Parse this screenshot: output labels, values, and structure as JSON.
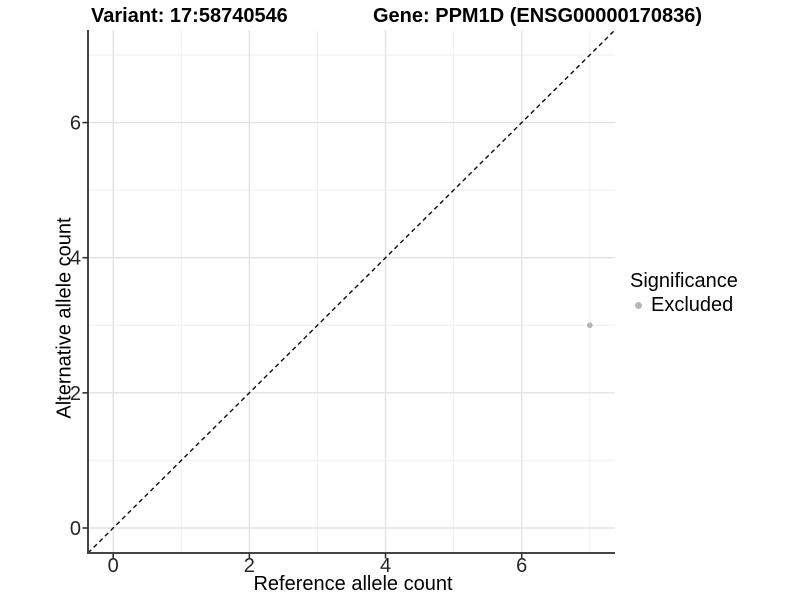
{
  "chart_data": {
    "type": "scatter",
    "titles": {
      "left": "Variant: 17:58740546",
      "right": "Gene: PPM1D (ENSG00000170836)"
    },
    "xlabel": "Reference allele count",
    "ylabel": "Alternative allele count",
    "xlim": [
      -0.37,
      7.37
    ],
    "ylim": [
      -0.37,
      7.37
    ],
    "x_ticks": [
      0,
      2,
      4,
      6
    ],
    "y_ticks": [
      0,
      2,
      4,
      6
    ],
    "x_minor_gridlines": [
      1,
      3,
      5,
      7
    ],
    "y_minor_gridlines": [
      1,
      3,
      5,
      7
    ],
    "grid": "major and minor, light grey on white panel",
    "series": [
      {
        "name": "Excluded",
        "color": "#b6b6b6",
        "points": [
          {
            "x": 7,
            "y": 3
          }
        ]
      }
    ],
    "reference_line": {
      "kind": "abline",
      "slope": 1,
      "intercept": 0,
      "style": "dashed",
      "color": "#0a0a0a"
    },
    "legend": {
      "title": "Significance",
      "position": "right",
      "entries": [
        {
          "label": "Excluded",
          "marker": "circle",
          "color": "#b6b6b6"
        }
      ]
    },
    "style": {
      "axis_line_color": "#454545",
      "tick_color": "#333333",
      "major_grid_color": "#e3e3e3",
      "minor_grid_color": "#efefef",
      "text_color": "#262626",
      "background": "#ffffff"
    }
  }
}
